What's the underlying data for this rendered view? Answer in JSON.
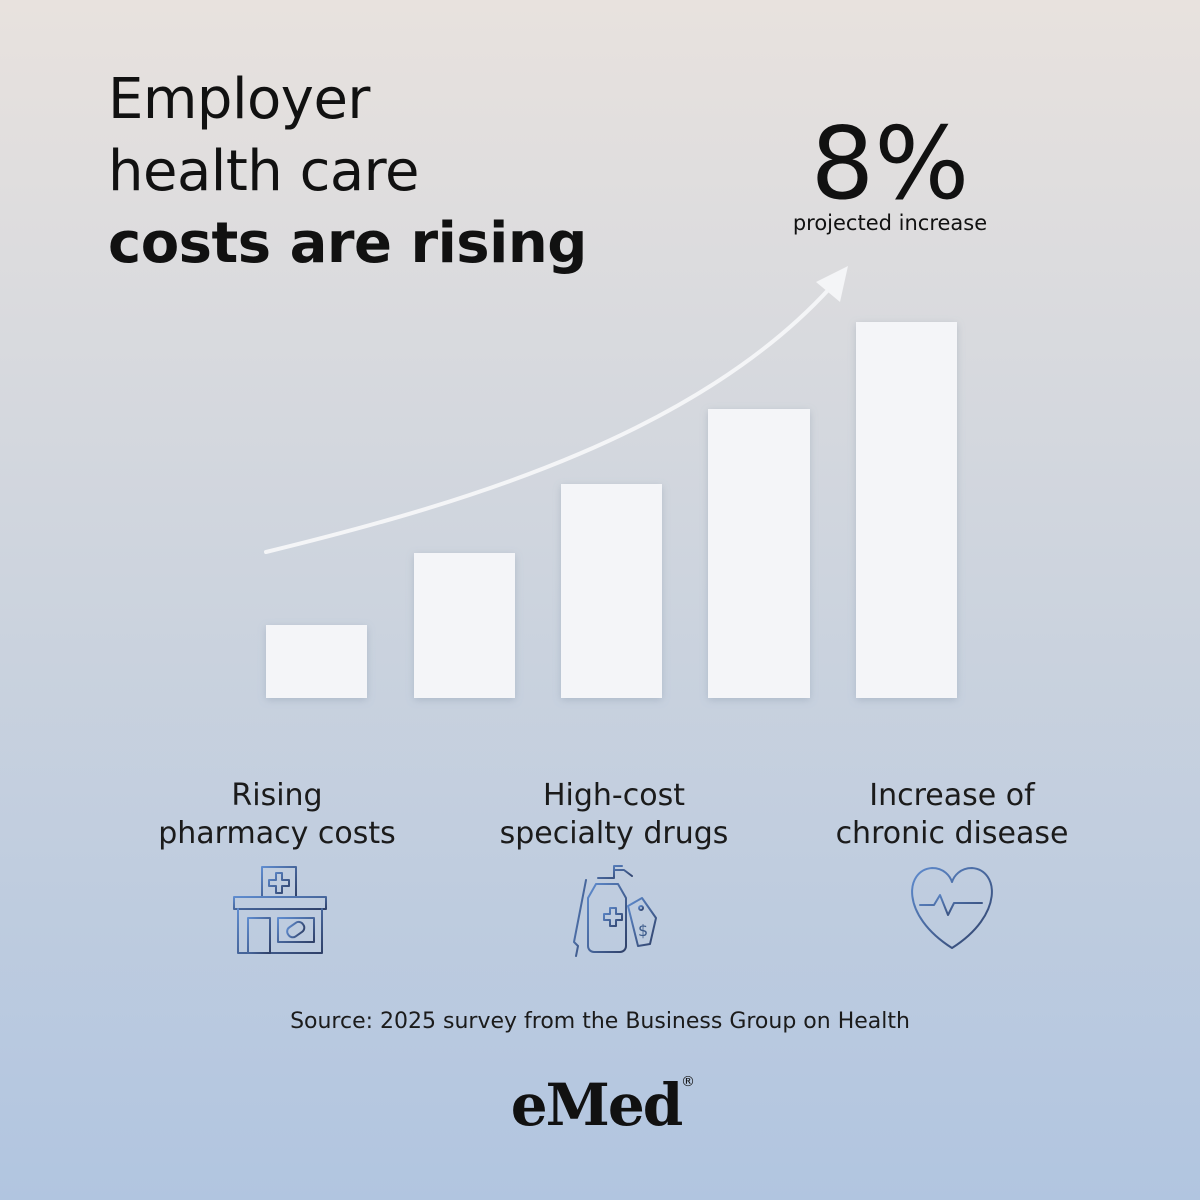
{
  "title": {
    "lines": [
      "Employer",
      "health care"
    ],
    "emphasis": "costs are rising"
  },
  "stat": {
    "value": "8%",
    "label": "projected increase"
  },
  "factors": [
    {
      "lines": [
        "Rising",
        "pharmacy costs"
      ]
    },
    {
      "lines": [
        "High-cost",
        "specialty drugs"
      ]
    },
    {
      "lines": [
        "Increase of",
        "chronic disease"
      ]
    }
  ],
  "source": "Source: 2025 survey from the Business Group on Health",
  "logo": {
    "text": "eMed",
    "mark": "®"
  }
}
